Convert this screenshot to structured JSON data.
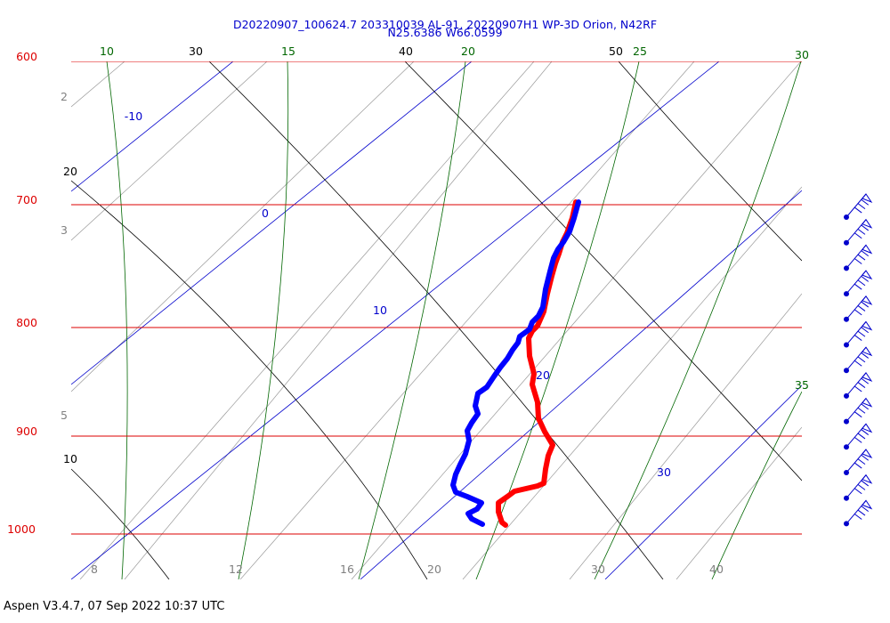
{
  "header": {
    "title_line1": "D20220907_100624.7 203310039 AL-91, 20220907H1 WP-3D Orion, N42RF",
    "title_line2": "N25.6386 W66.0599"
  },
  "footer": {
    "text": "Aspen V3.4.7, 07 Sep 2022  10:37 UTC"
  },
  "chart_data": {
    "type": "line",
    "title": "D20220907_100624.7 203310039 AL-91, 20220907H1 WP-3D Orion, N42RF",
    "subtitle": "N25.6386 W66.0599",
    "y_axis": {
      "scale": "log",
      "units": "hPa",
      "ticks": [
        600,
        700,
        800,
        900,
        1000
      ],
      "ylim": [
        1030,
        600
      ]
    },
    "x_axis": {
      "units": "degC (skewed)",
      "ticks": [
        8,
        12,
        16,
        20,
        30,
        40
      ]
    },
    "isobars_hPa": [
      600,
      700,
      800,
      900,
      1000
    ],
    "isotherm_labels": [
      "-10",
      "0",
      "10",
      "20",
      "30"
    ],
    "dry_adiabat_labels": [
      "10",
      "20",
      "30",
      "40",
      "50"
    ],
    "moist_adiabat_labels": [
      "10",
      "15",
      "20",
      "25",
      "30",
      "35"
    ],
    "mixing_ratio_labels": [
      "2",
      "3",
      "5"
    ],
    "series": [
      {
        "color": "#ff0000",
        "points": [
          [
            647,
            227
          ],
          [
            643,
            245
          ],
          [
            637,
            262
          ],
          [
            632,
            272
          ],
          [
            628,
            285
          ],
          [
            624,
            296
          ],
          [
            620,
            310
          ],
          [
            615,
            330
          ],
          [
            611,
            350
          ],
          [
            604,
            366
          ],
          [
            598,
            372
          ],
          [
            594,
            380
          ],
          [
            595,
            400
          ],
          [
            600,
            420
          ],
          [
            598,
            432
          ],
          [
            604,
            452
          ],
          [
            605,
            470
          ],
          [
            612,
            485
          ],
          [
            621,
            500
          ],
          [
            616,
            512
          ],
          [
            613,
            527
          ],
          [
            611,
            543
          ],
          [
            604,
            546
          ],
          [
            591,
            549
          ],
          [
            578,
            552
          ],
          [
            570,
            558
          ],
          [
            560,
            565
          ],
          [
            560,
            575
          ],
          [
            564,
            587
          ],
          [
            568,
            590
          ]
        ]
      },
      {
        "color": "#0000ff",
        "points": [
          [
            650,
            227
          ],
          [
            645,
            245
          ],
          [
            640,
            260
          ],
          [
            633,
            272
          ],
          [
            627,
            280
          ],
          [
            622,
            290
          ],
          [
            618,
            305
          ],
          [
            613,
            325
          ],
          [
            610,
            345
          ],
          [
            605,
            355
          ],
          [
            598,
            362
          ],
          [
            595,
            370
          ],
          [
            584,
            378
          ],
          [
            582,
            385
          ],
          [
            576,
            393
          ],
          [
            570,
            403
          ],
          [
            562,
            413
          ],
          [
            555,
            423
          ],
          [
            547,
            435
          ],
          [
            537,
            442
          ],
          [
            534,
            456
          ],
          [
            537,
            465
          ],
          [
            530,
            475
          ],
          [
            525,
            484
          ],
          [
            527,
            495
          ],
          [
            523,
            510
          ],
          [
            517,
            522
          ],
          [
            512,
            533
          ],
          [
            509,
            545
          ],
          [
            512,
            553
          ],
          [
            525,
            558
          ],
          [
            541,
            565
          ],
          [
            536,
            572
          ],
          [
            526,
            577
          ],
          [
            530,
            583
          ],
          [
            542,
            589
          ]
        ]
      }
    ],
    "wind_barb_count": 13
  }
}
